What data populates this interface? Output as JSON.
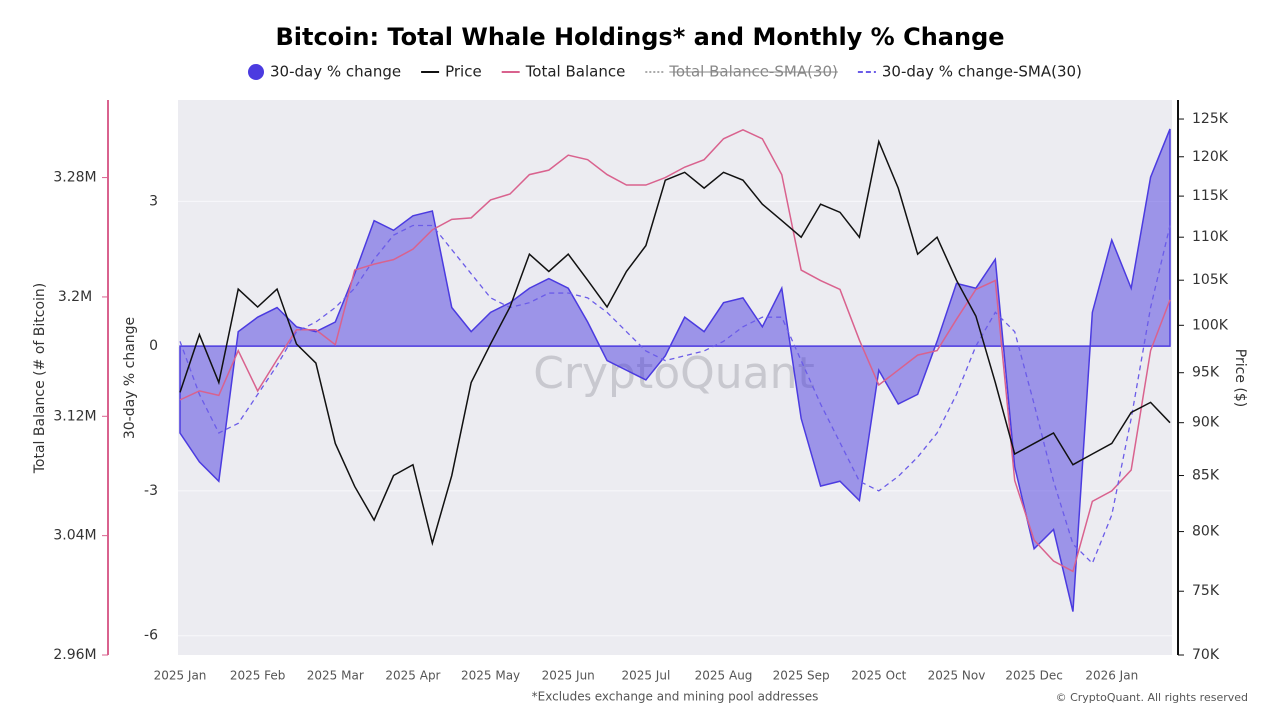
{
  "chart_data": {
    "type": "line",
    "title": "Bitcoin: Total Whale Holdings* and Monthly % Change",
    "y_label": "30-day % change",
    "y2_label": "Price ($)",
    "y3_label": "Total Balance (# of Bitcoin)",
    "note": "*Excludes exchange and mining pool addresses",
    "copyright": "© CryptoQuant. All rights reserved",
    "watermark": "CryptoQuant",
    "x": [
      "2025 Jan",
      null,
      null,
      null,
      "2025 Feb",
      null,
      null,
      null,
      "2025 Mar",
      null,
      null,
      null,
      "2025 Apr",
      null,
      null,
      null,
      "2025 May",
      null,
      null,
      null,
      "2025 Jun",
      null,
      null,
      null,
      "2025 Jul",
      null,
      null,
      null,
      "2025 Aug",
      null,
      null,
      null,
      "2025 Sep",
      null,
      null,
      null,
      "2025 Oct",
      null,
      null,
      null,
      "2025 Nov",
      null,
      null,
      null,
      "2025 Dec",
      null,
      null,
      null,
      "2026 Jan",
      null,
      null,
      null
    ],
    "series": [
      {
        "name": "30-day % change",
        "color": "#4b3be0",
        "kind": "area",
        "axis": "y",
        "values": [
          -1.8,
          -2.4,
          -2.8,
          0.3,
          0.6,
          0.8,
          0.4,
          0.3,
          0.5,
          1.5,
          2.6,
          2.4,
          2.7,
          2.8,
          0.8,
          0.3,
          0.7,
          0.9,
          1.2,
          1.4,
          1.2,
          0.5,
          -0.3,
          -0.5,
          -0.7,
          -0.2,
          0.6,
          0.3,
          0.9,
          1.0,
          0.4,
          1.2,
          -1.5,
          -2.9,
          -2.8,
          -3.2,
          -0.5,
          -1.2,
          -1.0,
          0.1,
          1.3,
          1.2,
          1.8,
          -2.5,
          -4.2,
          -3.8,
          -5.5,
          0.7,
          2.2,
          1.2,
          3.5,
          4.5
        ]
      },
      {
        "name": "Price",
        "color": "#111111",
        "kind": "line",
        "axis": "y2",
        "values": [
          93000,
          99000,
          94000,
          104000,
          102000,
          104000,
          98000,
          96000,
          88000,
          84000,
          81000,
          85000,
          86000,
          79000,
          85000,
          94000,
          98000,
          102000,
          108000,
          106000,
          108000,
          105000,
          102000,
          106000,
          109000,
          117000,
          118000,
          116000,
          118000,
          117000,
          114000,
          112000,
          110000,
          114000,
          113000,
          110000,
          122000,
          116000,
          108000,
          110000,
          105000,
          101000,
          94000,
          87000,
          88000,
          89000,
          86000,
          87000,
          88000,
          91000,
          92000,
          90000
        ]
      },
      {
        "name": "Total Balance",
        "color": "#d9628e",
        "kind": "line",
        "axis": "y3",
        "values": [
          3131000,
          3137000,
          3134000,
          3164000,
          3137000,
          3158000,
          3178000,
          3178000,
          3168000,
          3218000,
          3222000,
          3225000,
          3232000,
          3245000,
          3252000,
          3253000,
          3265000,
          3269000,
          3282000,
          3285000,
          3295000,
          3292000,
          3282000,
          3275000,
          3275000,
          3280000,
          3287000,
          3292000,
          3306000,
          3312000,
          3306000,
          3282000,
          3218000,
          3211000,
          3205000,
          3171000,
          3141000,
          3151000,
          3161000,
          3164000,
          3185000,
          3205000,
          3211000,
          3077000,
          3037000,
          3023000,
          3016000,
          3063000,
          3070000,
          3084000,
          3164000,
          3198000
        ]
      },
      {
        "name": "Total Balance-SMA(30)",
        "color": "#aaaaaa",
        "visible": false
      },
      {
        "name": "30-day % change-SMA(30)",
        "color": "#6b5ce8",
        "kind": "dashed",
        "axis": "y",
        "values": [
          0.1,
          -1.0,
          -1.8,
          -1.6,
          -1.0,
          -0.4,
          0.3,
          0.5,
          0.8,
          1.2,
          1.8,
          2.3,
          2.5,
          2.5,
          2.0,
          1.5,
          1.0,
          0.8,
          0.9,
          1.1,
          1.1,
          1.0,
          0.7,
          0.3,
          -0.1,
          -0.3,
          -0.2,
          -0.1,
          0.1,
          0.4,
          0.6,
          0.6,
          -0.3,
          -1.2,
          -2.0,
          -2.8,
          -3.0,
          -2.7,
          -2.3,
          -1.8,
          -1.0,
          0.0,
          0.7,
          0.3,
          -1.2,
          -2.8,
          -4.1,
          -4.5,
          -3.5,
          -1.5,
          0.8,
          2.5
        ]
      }
    ],
    "ylim": [
      -6.4,
      5.1
    ],
    "yticks": [
      -6,
      -3,
      0,
      3
    ],
    "y2scale": "log",
    "y2lim": [
      70000,
      127600
    ],
    "y2ticks": [
      {
        "value": 70000,
        "label": "70K"
      },
      {
        "value": 75000,
        "label": "75K"
      },
      {
        "value": 80000,
        "label": "80K"
      },
      {
        "value": 85000,
        "label": "85K"
      },
      {
        "value": 90000,
        "label": "90K"
      },
      {
        "value": 95000,
        "label": "95K"
      },
      {
        "value": 100000,
        "label": "100K"
      },
      {
        "value": 105000,
        "label": "105K"
      },
      {
        "value": 110000,
        "label": "110K"
      },
      {
        "value": 115000,
        "label": "115K"
      },
      {
        "value": 120000,
        "label": "120K"
      },
      {
        "value": 125000,
        "label": "125K"
      }
    ],
    "y3lim": [
      2960000,
      3332000
    ],
    "y3ticks": [
      {
        "value": 2960000,
        "label": "2.96M"
      },
      {
        "value": 3040000,
        "label": "3.04M"
      },
      {
        "value": 3120000,
        "label": "3.12M"
      },
      {
        "value": 3200000,
        "label": "3.2M"
      },
      {
        "value": 3280000,
        "label": "3.28M"
      }
    ],
    "grid": true
  }
}
